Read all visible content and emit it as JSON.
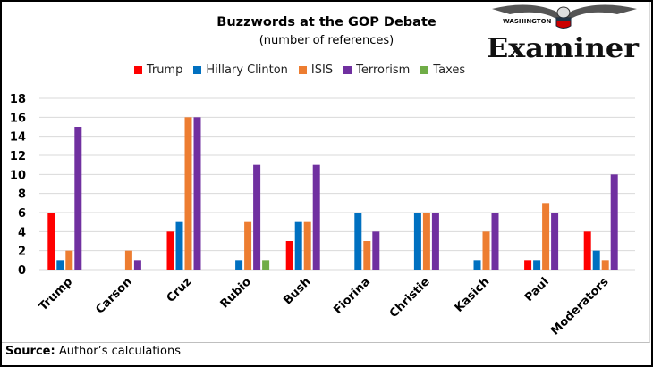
{
  "chart_data": {
    "type": "bar",
    "title": "Buzzwords at the GOP Debate",
    "subtitle": "(number of references)",
    "categories": [
      "Trump",
      "Carson",
      "Cruz",
      "Rubio",
      "Bush",
      "Fiorina",
      "Christie",
      "Kasich",
      "Paul",
      "Moderators"
    ],
    "series": [
      {
        "name": "Trump",
        "color": "#ff0000",
        "values": [
          6,
          0,
          4,
          0,
          3,
          0,
          0,
          0,
          1,
          4
        ]
      },
      {
        "name": "Hillary Clinton",
        "color": "#0070c0",
        "values": [
          1,
          0,
          5,
          1,
          5,
          6,
          6,
          1,
          1,
          2
        ]
      },
      {
        "name": "ISIS",
        "color": "#ed7d31",
        "values": [
          2,
          2,
          16,
          5,
          5,
          3,
          6,
          4,
          7,
          1
        ]
      },
      {
        "name": "Terrorism",
        "color": "#7030a0",
        "values": [
          15,
          1,
          16,
          11,
          11,
          4,
          6,
          6,
          6,
          10
        ]
      },
      {
        "name": "Taxes",
        "color": "#70ad47",
        "values": [
          0,
          0,
          0,
          1,
          0,
          0,
          0,
          0,
          0,
          0
        ]
      }
    ],
    "ylim": [
      0,
      18
    ],
    "yticks": [
      "0",
      "2",
      "4",
      "6",
      "8",
      "10",
      "12",
      "14",
      "16",
      "18"
    ],
    "grid": true,
    "legend": "top"
  },
  "source": {
    "label": "Source:",
    "text": " Author’s calculations"
  },
  "logo": {
    "top": "WASHINGTON",
    "name": "Examiner"
  }
}
